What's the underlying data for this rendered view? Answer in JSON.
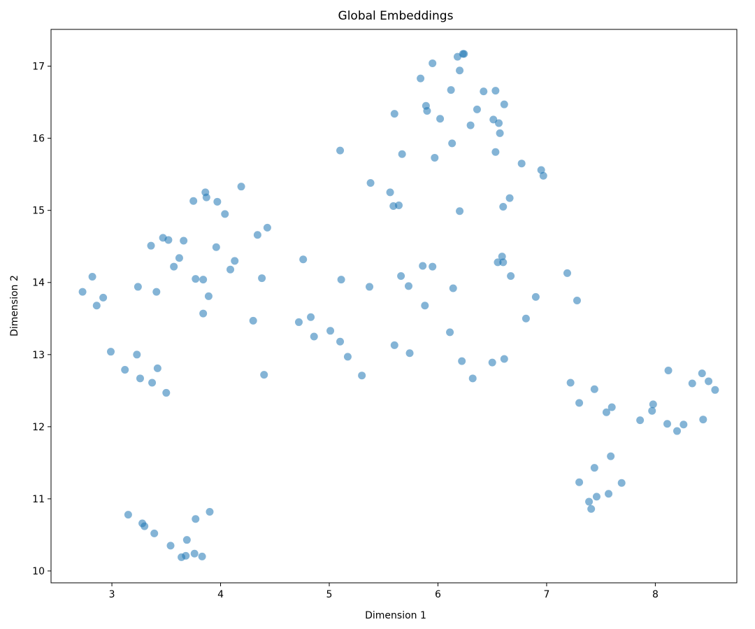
{
  "chart_data": {
    "type": "scatter",
    "title": "Global Embeddings",
    "xlabel": "Dimension 1",
    "ylabel": "Dimension 2",
    "xlim": [
      2.44,
      8.75
    ],
    "ylim": [
      9.835,
      17.51
    ],
    "xticks": [
      3,
      4,
      5,
      6,
      7,
      8
    ],
    "yticks": [
      10,
      11,
      12,
      13,
      14,
      15,
      16,
      17
    ],
    "grid": false,
    "color": "#1f77b4",
    "alpha": 0.55,
    "points": [
      [
        2.73,
        13.87
      ],
      [
        2.82,
        14.08
      ],
      [
        2.86,
        13.68
      ],
      [
        2.92,
        13.79
      ],
      [
        2.99,
        13.04
      ],
      [
        3.12,
        12.79
      ],
      [
        3.15,
        10.78
      ],
      [
        3.23,
        13.0
      ],
      [
        3.24,
        13.94
      ],
      [
        3.26,
        12.67
      ],
      [
        3.28,
        10.66
      ],
      [
        3.3,
        10.62
      ],
      [
        3.36,
        14.51
      ],
      [
        3.37,
        12.61
      ],
      [
        3.39,
        10.52
      ],
      [
        3.41,
        13.87
      ],
      [
        3.42,
        12.81
      ],
      [
        3.47,
        14.62
      ],
      [
        3.5,
        12.47
      ],
      [
        3.52,
        14.59
      ],
      [
        3.54,
        10.35
      ],
      [
        3.57,
        14.22
      ],
      [
        3.62,
        14.34
      ],
      [
        3.64,
        10.19
      ],
      [
        3.66,
        14.58
      ],
      [
        3.68,
        10.21
      ],
      [
        3.69,
        10.43
      ],
      [
        3.75,
        15.13
      ],
      [
        3.76,
        10.24
      ],
      [
        3.77,
        10.72
      ],
      [
        3.77,
        14.05
      ],
      [
        3.84,
        13.57
      ],
      [
        3.83,
        10.2
      ],
      [
        3.84,
        14.04
      ],
      [
        3.86,
        15.25
      ],
      [
        3.87,
        15.18
      ],
      [
        3.89,
        13.81
      ],
      [
        3.9,
        10.82
      ],
      [
        3.96,
        14.49
      ],
      [
        3.97,
        15.12
      ],
      [
        4.04,
        14.95
      ],
      [
        4.09,
        14.18
      ],
      [
        4.13,
        14.3
      ],
      [
        4.19,
        15.33
      ],
      [
        4.3,
        13.47
      ],
      [
        4.34,
        14.66
      ],
      [
        4.38,
        14.06
      ],
      [
        4.4,
        12.72
      ],
      [
        4.43,
        14.76
      ],
      [
        4.72,
        13.45
      ],
      [
        4.76,
        14.32
      ],
      [
        4.83,
        13.52
      ],
      [
        4.86,
        13.25
      ],
      [
        5.01,
        13.33
      ],
      [
        5.1,
        13.18
      ],
      [
        5.1,
        15.83
      ],
      [
        5.11,
        14.04
      ],
      [
        5.17,
        12.97
      ],
      [
        5.3,
        12.71
      ],
      [
        5.37,
        13.94
      ],
      [
        5.38,
        15.38
      ],
      [
        5.56,
        15.25
      ],
      [
        5.59,
        15.06
      ],
      [
        5.6,
        13.13
      ],
      [
        5.6,
        16.34
      ],
      [
        5.64,
        15.07
      ],
      [
        5.66,
        14.09
      ],
      [
        5.67,
        15.78
      ],
      [
        5.73,
        13.95
      ],
      [
        5.74,
        13.02
      ],
      [
        5.84,
        16.83
      ],
      [
        5.86,
        14.23
      ],
      [
        5.88,
        13.68
      ],
      [
        5.89,
        16.45
      ],
      [
        5.9,
        16.38
      ],
      [
        5.95,
        14.22
      ],
      [
        5.95,
        17.04
      ],
      [
        5.97,
        15.73
      ],
      [
        6.02,
        16.27
      ],
      [
        6.11,
        13.31
      ],
      [
        6.12,
        16.67
      ],
      [
        6.13,
        15.93
      ],
      [
        6.14,
        13.92
      ],
      [
        6.18,
        17.13
      ],
      [
        6.2,
        14.99
      ],
      [
        6.2,
        16.94
      ],
      [
        6.22,
        12.91
      ],
      [
        6.23,
        17.17
      ],
      [
        6.24,
        17.17
      ],
      [
        6.3,
        16.18
      ],
      [
        6.32,
        12.67
      ],
      [
        6.36,
        16.4
      ],
      [
        6.42,
        16.65
      ],
      [
        6.5,
        12.89
      ],
      [
        6.51,
        16.26
      ],
      [
        6.53,
        16.66
      ],
      [
        6.53,
        15.81
      ],
      [
        6.55,
        14.28
      ],
      [
        6.56,
        16.21
      ],
      [
        6.57,
        16.07
      ],
      [
        6.59,
        14.36
      ],
      [
        6.6,
        15.05
      ],
      [
        6.6,
        14.28
      ],
      [
        6.61,
        12.94
      ],
      [
        6.61,
        16.47
      ],
      [
        6.66,
        15.17
      ],
      [
        6.67,
        14.09
      ],
      [
        6.77,
        15.65
      ],
      [
        6.81,
        13.5
      ],
      [
        6.9,
        13.8
      ],
      [
        6.95,
        15.56
      ],
      [
        6.97,
        15.48
      ],
      [
        7.19,
        14.13
      ],
      [
        7.22,
        12.61
      ],
      [
        7.28,
        13.75
      ],
      [
        7.3,
        12.33
      ],
      [
        7.3,
        11.23
      ],
      [
        7.39,
        10.96
      ],
      [
        7.41,
        10.86
      ],
      [
        7.44,
        12.52
      ],
      [
        7.44,
        11.43
      ],
      [
        7.46,
        11.03
      ],
      [
        7.55,
        12.2
      ],
      [
        7.57,
        11.07
      ],
      [
        7.59,
        11.59
      ],
      [
        7.6,
        12.27
      ],
      [
        7.69,
        11.22
      ],
      [
        7.86,
        12.09
      ],
      [
        7.97,
        12.22
      ],
      [
        7.98,
        12.31
      ],
      [
        8.11,
        12.04
      ],
      [
        8.12,
        12.78
      ],
      [
        8.2,
        11.94
      ],
      [
        8.26,
        12.03
      ],
      [
        8.34,
        12.6
      ],
      [
        8.43,
        12.74
      ],
      [
        8.44,
        12.1
      ],
      [
        8.49,
        12.63
      ],
      [
        8.55,
        12.51
      ]
    ]
  }
}
